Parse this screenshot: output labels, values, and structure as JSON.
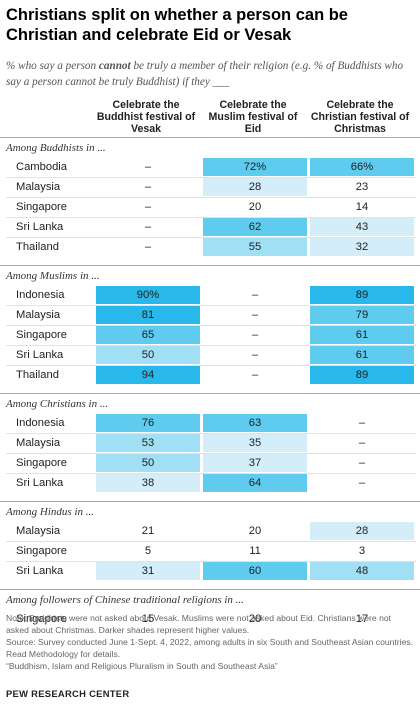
{
  "title": "Christians split on whether a person can be Christian and celebrate Eid or Vesak",
  "subtitle": "% who say a person cannot be truly a member of their religion (e.g. % of Buddhists who say a person cannot be truly Buddhist) if they ___",
  "subtitle_emphasis": "cannot",
  "chart_data": {
    "type": "table",
    "columns": [
      "Celebrate the Buddhist festival of Vesak",
      "Celebrate the Muslim festival of Eid",
      "Celebrate the Christian festival of Christmas"
    ],
    "groups": [
      {
        "label": "Among Buddhists in ...",
        "rows": [
          {
            "country": "Cambodia",
            "values": [
              "–",
              "72%",
              "66%"
            ]
          },
          {
            "country": "Malaysia",
            "values": [
              "–",
              "28",
              "23"
            ]
          },
          {
            "country": "Singapore",
            "values": [
              "–",
              "20",
              "14"
            ]
          },
          {
            "country": "Sri Lanka",
            "values": [
              "–",
              "62",
              "43"
            ]
          },
          {
            "country": "Thailand",
            "values": [
              "–",
              "55",
              "32"
            ]
          }
        ]
      },
      {
        "label": "Among Muslims in ...",
        "rows": [
          {
            "country": "Indonesia",
            "values": [
              "90%",
              "–",
              "89"
            ]
          },
          {
            "country": "Malaysia",
            "values": [
              "81",
              "–",
              "79"
            ]
          },
          {
            "country": "Singapore",
            "values": [
              "65",
              "–",
              "61"
            ]
          },
          {
            "country": "Sri Lanka",
            "values": [
              "50",
              "–",
              "61"
            ]
          },
          {
            "country": "Thailand",
            "values": [
              "94",
              "–",
              "89"
            ]
          }
        ]
      },
      {
        "label": "Among Christians in ...",
        "rows": [
          {
            "country": "Indonesia",
            "values": [
              "76",
              "63",
              "–"
            ]
          },
          {
            "country": "Malaysia",
            "values": [
              "53",
              "35",
              "–"
            ]
          },
          {
            "country": "Singapore",
            "values": [
              "50",
              "37",
              "–"
            ]
          },
          {
            "country": "Sri Lanka",
            "values": [
              "38",
              "64",
              "–"
            ]
          }
        ]
      },
      {
        "label": "Among Hindus in ...",
        "rows": [
          {
            "country": "Malaysia",
            "values": [
              "21",
              "20",
              "28"
            ]
          },
          {
            "country": "Singapore",
            "values": [
              "5",
              "11",
              "3"
            ]
          },
          {
            "country": "Sri Lanka",
            "values": [
              "31",
              "60",
              "48"
            ]
          }
        ]
      },
      {
        "label": "Among followers of Chinese traditional religions in ...",
        "rows": [
          {
            "country": "Singapore",
            "values": [
              "15",
              "20",
              "17"
            ]
          }
        ]
      }
    ],
    "shade_colors": [
      "#ffffff",
      "#d3eef9",
      "#a1dff5",
      "#5ecbef",
      "#29b8ea"
    ]
  },
  "notes": [
    "Note: Buddhists were not asked about Vesak. Muslims were not asked about Eid. Christians were not asked about Christmas. Darker shades represent higher values.",
    "Source: Survey conducted June 1-Sept. 4, 2022, among adults in six South and Southeast Asian countries. Read Methodology for details.",
    "“Buddhism, Islam and Religious Pluralism in South and Southeast Asia”"
  ],
  "brand": "PEW RESEARCH CENTER"
}
